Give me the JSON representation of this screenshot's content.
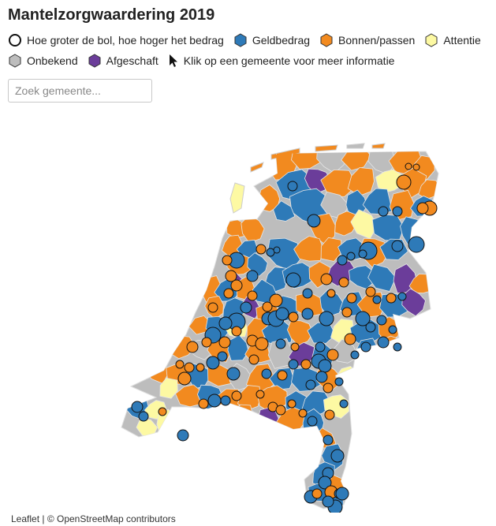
{
  "title": "Mantelzorgwaardering 2019",
  "legend": {
    "size_note": "Hoe groter de bol, hoe hoger het bedrag",
    "items": [
      {
        "key": "geld",
        "label": "Geldbedrag",
        "color": "#2e7ab8"
      },
      {
        "key": "bonnen",
        "label": "Bonnen/passen",
        "color": "#f28a1f"
      },
      {
        "key": "attentie",
        "label": "Attentie",
        "color": "#fdf9a3"
      },
      {
        "key": "onbekend",
        "label": "Onbekend",
        "color": "#bdbdbd"
      },
      {
        "key": "afgeschaft",
        "label": "Afgeschaft",
        "color": "#6b3d9a"
      }
    ],
    "click_hint": "Klik op een gemeente voor meer informatie",
    "icons": [
      "circle-outline-icon",
      "hexagon-icon",
      "cursor-icon"
    ]
  },
  "search": {
    "placeholder": "Zoek gemeente..."
  },
  "attribution": {
    "leaflet": "Leaflet",
    "separator": " | © ",
    "osm": "OpenStreetMap contributors"
  }
}
